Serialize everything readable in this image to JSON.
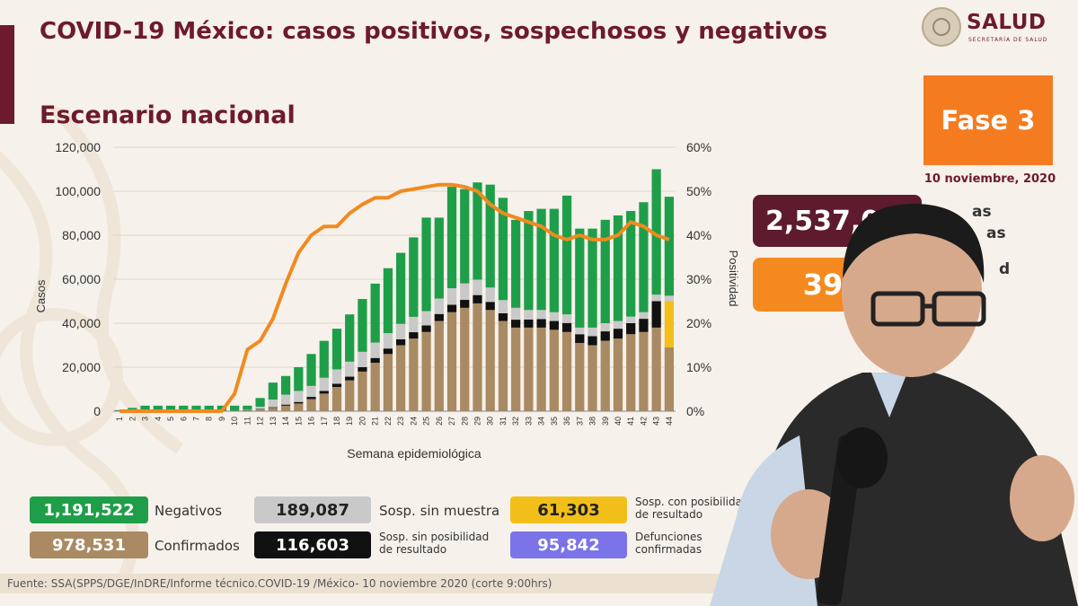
{
  "header": {
    "title": "COVID-19 México: casos positivos, sospechosos y negativos",
    "subtitle": "Escenario nacional"
  },
  "logo": {
    "name": "SALUD",
    "subtext": "SECRETARÍA DE SALUD"
  },
  "phase": {
    "label": "Fase 3",
    "date": "10 noviembre, 2020"
  },
  "summary": {
    "total": "2,537,046",
    "total_label_lines": [
      "as",
      "as",
      "d"
    ],
    "positivity": "39%"
  },
  "legend": [
    {
      "key": "negativos",
      "value": "1,191,522",
      "label": "Negativos",
      "color": "#1f9e4a"
    },
    {
      "key": "sin_muestra",
      "value": "189,087",
      "label": "Sosp. sin muestra",
      "color": "#c9c9c9"
    },
    {
      "key": "con_posibilidad",
      "value": "61,303",
      "label": "Sosp. con posibilidad de resultado",
      "color": "#f2bf1a"
    },
    {
      "key": "confirmados",
      "value": "978,531",
      "label": "Confirmados",
      "color": "#a98a63"
    },
    {
      "key": "sin_posibilidad",
      "value": "116,603",
      "label": "Sosp. sin posibilidad de resultado",
      "color": "#111111"
    },
    {
      "key": "defunciones",
      "value": "95,842",
      "label": "Defunciones confirmadas",
      "color": "#7a74e8"
    }
  ],
  "footer": "Fuente: SSA(SPPS/DGE/InDRE/Informe técnico.COVID-19 /México- 10 noviembre 2020 (corte 9:00hrs)",
  "chart_data": {
    "type": "bar",
    "stacked": true,
    "xlabel": "Semana epidemiológica",
    "ylabel": "Casos",
    "y2label": "Positividad",
    "ylim": [
      0,
      120000
    ],
    "y2lim": [
      0,
      60
    ],
    "yticks": [
      "0",
      "20,000",
      "40,000",
      "60,000",
      "80,000",
      "100,000",
      "120,000"
    ],
    "y2ticks": [
      "0%",
      "10%",
      "20%",
      "30%",
      "40%",
      "50%",
      "60%"
    ],
    "categories": [
      "1",
      "2",
      "3",
      "4",
      "5",
      "6",
      "7",
      "8",
      "9",
      "10",
      "11",
      "12",
      "13",
      "14",
      "15",
      "16",
      "17",
      "18",
      "19",
      "20",
      "21",
      "22",
      "23",
      "24",
      "25",
      "26",
      "27",
      "28",
      "29",
      "30",
      "31",
      "32",
      "33",
      "34",
      "35",
      "36",
      "37",
      "38",
      "39",
      "40",
      "41",
      "42",
      "43",
      "44"
    ],
    "series": [
      {
        "name": "Confirmados",
        "color": "#a98a63",
        "values": [
          0,
          0,
          0,
          0,
          0,
          0,
          0,
          0,
          0,
          0,
          300,
          800,
          1500,
          2500,
          3500,
          5500,
          8000,
          11000,
          14000,
          18000,
          22000,
          26000,
          30000,
          33000,
          36000,
          41000,
          45000,
          47000,
          49000,
          46000,
          41000,
          38000,
          38000,
          38000,
          37000,
          36000,
          31000,
          30000,
          32000,
          33000,
          35000,
          36000,
          38000,
          29000
        ]
      },
      {
        "name": "Sosp. sin posibilidad de resultado",
        "color": "#111111",
        "values": [
          0,
          0,
          0,
          0,
          0,
          0,
          0,
          0,
          0,
          0,
          100,
          200,
          300,
          500,
          700,
          1000,
          1200,
          1500,
          1700,
          2000,
          2200,
          2500,
          2700,
          2900,
          3000,
          3200,
          3400,
          3600,
          3800,
          3700,
          3500,
          3600,
          3700,
          3900,
          4000,
          4100,
          4000,
          4100,
          4300,
          4500,
          5000,
          6000,
          12000,
          0
        ]
      },
      {
        "name": "Sosp. con posibilidad de resultado",
        "color": "#f2bf1a",
        "values": [
          0,
          0,
          0,
          0,
          0,
          0,
          0,
          0,
          0,
          0,
          0,
          0,
          0,
          0,
          0,
          0,
          0,
          0,
          0,
          0,
          0,
          0,
          0,
          0,
          0,
          0,
          0,
          0,
          0,
          0,
          0,
          0,
          0,
          0,
          0,
          0,
          0,
          0,
          0,
          0,
          0,
          0,
          0,
          21000
        ]
      },
      {
        "name": "Sosp. sin muestra",
        "color": "#c9c9c9",
        "values": [
          0,
          0,
          0,
          0,
          0,
          0,
          0,
          0,
          0,
          0,
          200,
          1000,
          3500,
          4500,
          5000,
          5000,
          6000,
          6500,
          6800,
          7000,
          7000,
          7000,
          7000,
          7000,
          6500,
          7000,
          7500,
          7500,
          7000,
          6500,
          6000,
          5400,
          4300,
          4100,
          4000,
          3900,
          3000,
          3900,
          3700,
          3500,
          3000,
          3000,
          3000,
          2500
        ]
      },
      {
        "name": "Negativos",
        "color": "#1f9e4a",
        "values": [
          500,
          1500,
          2500,
          2500,
          2500,
          2500,
          2500,
          2500,
          2500,
          2500,
          1900,
          4000,
          7700,
          8500,
          10800,
          14500,
          16800,
          18500,
          21500,
          24000,
          26800,
          29500,
          32300,
          36100,
          42500,
          36800,
          46100,
          42900,
          44200,
          46800,
          46500,
          40000,
          45000,
          46000,
          47000,
          54000,
          45000,
          45000,
          47000,
          48000,
          48000,
          50000,
          57000,
          45000
        ]
      }
    ],
    "line": {
      "name": "Positividad",
      "color": "#f08a20",
      "values": [
        0,
        0,
        0,
        0,
        0,
        0,
        0,
        0,
        0,
        4,
        14,
        16,
        21,
        29,
        36,
        40,
        42,
        42,
        45,
        47,
        48.5,
        48.5,
        50,
        50.5,
        51,
        51.5,
        51.5,
        51,
        50,
        47,
        45,
        44,
        43,
        42,
        40,
        39,
        40,
        39,
        39,
        40,
        43,
        42,
        40,
        39
      ]
    }
  }
}
